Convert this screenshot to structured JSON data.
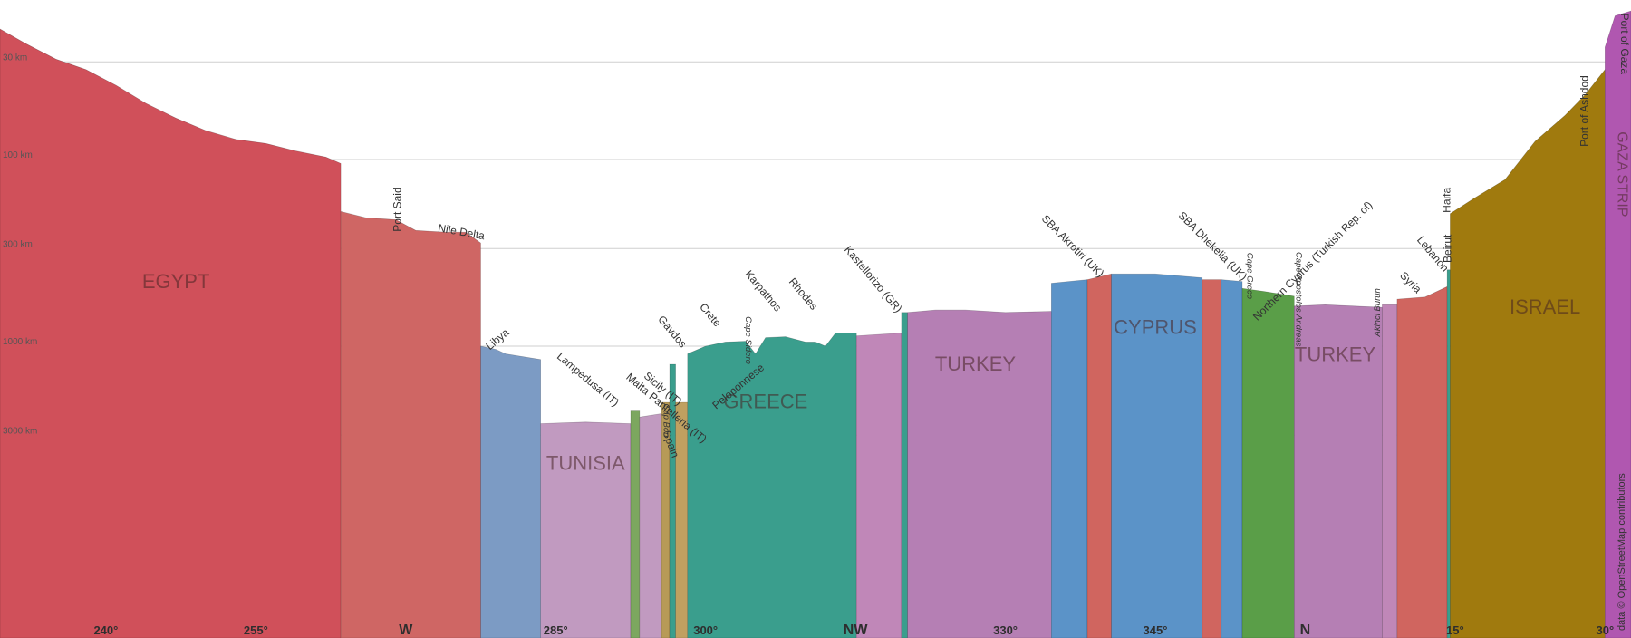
{
  "chart_data": {
    "type": "area",
    "title": "",
    "distance_labels": [
      "30 km",
      "100 km",
      "300 km",
      "1000 km",
      "3000 km"
    ],
    "bearing_ticks": [
      {
        "label": "240°",
        "bearing": 240,
        "cardinal": false
      },
      {
        "label": "255°",
        "bearing": 255,
        "cardinal": false
      },
      {
        "label": "W",
        "bearing": 270,
        "cardinal": true
      },
      {
        "label": "285°",
        "bearing": 285,
        "cardinal": false
      },
      {
        "label": "300°",
        "bearing": 300,
        "cardinal": false
      },
      {
        "label": "NW",
        "bearing": 315,
        "cardinal": true
      },
      {
        "label": "330°",
        "bearing": 330,
        "cardinal": false
      },
      {
        "label": "345°",
        "bearing": 345,
        "cardinal": false
      },
      {
        "label": "N",
        "bearing": 360,
        "cardinal": true
      },
      {
        "label": "15°",
        "bearing": 375,
        "cardinal": false
      },
      {
        "label": "30°",
        "bearing": 390,
        "cardinal": false
      }
    ],
    "regions": [
      {
        "country": "EGYPT",
        "color": "#d0505a",
        "from": 229.4,
        "to": 263.5,
        "profile": [
          [
            229.4,
            20
          ],
          [
            232,
            24
          ],
          [
            235,
            29
          ],
          [
            238,
            33
          ],
          [
            241,
            40
          ],
          [
            244,
            50
          ],
          [
            247,
            60
          ],
          [
            250,
            70
          ],
          [
            253,
            78
          ],
          [
            256,
            82
          ],
          [
            259,
            90
          ],
          [
            262,
            97
          ],
          [
            263.5,
            105
          ]
        ]
      },
      {
        "country": "EGYPT",
        "color": "#cf6664",
        "from": 263.5,
        "to": 277.5,
        "profile": [
          [
            263.5,
            190
          ],
          [
            266,
            205
          ],
          [
            269,
            210
          ],
          [
            271,
            240
          ],
          [
            274,
            245
          ],
          [
            276,
            245
          ],
          [
            277.5,
            280
          ]
        ]
      },
      {
        "country": "",
        "color": "#7c9bc4",
        "from": 277.5,
        "to": 283.5,
        "profile": [
          [
            277.5,
            1000
          ],
          [
            279,
            1040
          ],
          [
            280,
            1100
          ],
          [
            283.5,
            1180
          ]
        ]
      },
      {
        "country": "TUNISIA",
        "color": "#c19ac0",
        "from": 283.5,
        "to": 292.5,
        "profile": [
          [
            283.5,
            2600
          ],
          [
            288,
            2550
          ],
          [
            292.5,
            2600
          ]
        ]
      },
      {
        "country": "",
        "color": "#7ca75f",
        "from": 292.5,
        "to": 293.4,
        "profile": [
          [
            292.5,
            2200
          ],
          [
            293.4,
            2200
          ]
        ]
      },
      {
        "country": "",
        "color": "#c19ac0",
        "from": 293.4,
        "to": 295.6,
        "profile": [
          [
            293.4,
            2400
          ],
          [
            295.6,
            2300
          ]
        ]
      },
      {
        "country": "",
        "color": "#b79a57",
        "from": 295.6,
        "to": 296.4,
        "profile": [
          [
            295.6,
            2000
          ],
          [
            296.4,
            2000
          ]
        ]
      },
      {
        "country": "",
        "color": "#3a9e8d",
        "from": 296.4,
        "to": 297.0,
        "profile": [
          [
            296.4,
            1250
          ],
          [
            297,
            1250
          ]
        ]
      },
      {
        "country": "",
        "color": "#c0a060",
        "from": 297.0,
        "to": 298.2,
        "profile": [
          [
            297,
            2000
          ],
          [
            298.2,
            2000
          ]
        ]
      },
      {
        "country": "GREECE",
        "color": "#3a9e8d",
        "from": 298.2,
        "to": 315.1,
        "profile": [
          [
            298.2,
            1100
          ],
          [
            300,
            1000
          ],
          [
            302,
            950
          ],
          [
            304,
            940
          ],
          [
            305,
            1100
          ],
          [
            306,
            900
          ],
          [
            308,
            890
          ],
          [
            310,
            950
          ],
          [
            311,
            950
          ],
          [
            312,
            1000
          ],
          [
            313,
            850
          ],
          [
            315.1,
            850
          ]
        ]
      },
      {
        "country": "",
        "color": "#c087b8",
        "from": 315.1,
        "to": 319.6,
        "profile": [
          [
            315.1,
            880
          ],
          [
            319.6,
            850
          ]
        ]
      },
      {
        "country": "",
        "color": "#3a9e8d",
        "from": 319.6,
        "to": 320.2,
        "profile": [
          [
            319.6,
            660
          ],
          [
            320.2,
            660
          ]
        ]
      },
      {
        "country": "TURKEY",
        "color": "#b57fb4",
        "from": 320.2,
        "to": 334.6,
        "profile": [
          [
            320.2,
            660
          ],
          [
            323,
            640
          ],
          [
            326,
            640
          ],
          [
            330,
            660
          ],
          [
            334.6,
            650
          ]
        ]
      },
      {
        "country": "",
        "color": "#5b93c8",
        "from": 334.6,
        "to": 338.2,
        "profile": [
          [
            334.6,
            460
          ],
          [
            338.2,
            440
          ]
        ]
      },
      {
        "country": "",
        "color": "#d0655f",
        "from": 338.2,
        "to": 340.6,
        "profile": [
          [
            338.2,
            440
          ],
          [
            340.6,
            410
          ]
        ]
      },
      {
        "country": "CYPRUS",
        "color": "#5b93c8",
        "from": 340.6,
        "to": 349.7,
        "profile": [
          [
            340.6,
            410
          ],
          [
            345,
            410
          ],
          [
            349.7,
            430
          ]
        ]
      },
      {
        "country": "",
        "color": "#d0655f",
        "from": 349.7,
        "to": 351.6,
        "profile": [
          [
            349.7,
            440
          ],
          [
            351.6,
            440
          ]
        ]
      },
      {
        "country": "",
        "color": "#5b93c8",
        "from": 351.6,
        "to": 353.7,
        "profile": [
          [
            351.6,
            440
          ],
          [
            353.7,
            450
          ]
        ]
      },
      {
        "country": "",
        "color": "#5a9e48",
        "from": 353.7,
        "to": 358.9,
        "profile": [
          [
            353.7,
            490
          ],
          [
            356,
            510
          ],
          [
            358.9,
            540
          ]
        ]
      },
      {
        "country": "TURKEY",
        "color": "#b57fb4",
        "from": 358.9,
        "to": 367.7,
        "profile": [
          [
            358.9,
            610
          ],
          [
            362,
            600
          ],
          [
            367.7,
            620
          ]
        ]
      },
      {
        "country": "",
        "color": "#c087b8",
        "from": 367.7,
        "to": 369.2,
        "profile": [
          [
            367.7,
            600
          ],
          [
            369.2,
            600
          ]
        ]
      },
      {
        "country": "",
        "color": "#d0655f",
        "from": 369.2,
        "to": 374.2,
        "profile": [
          [
            369.2,
            560
          ],
          [
            372,
            545
          ],
          [
            374.2,
            480
          ]
        ]
      },
      {
        "country": "",
        "color": "#3a9e8d",
        "from": 374.2,
        "to": 374.5,
        "profile": [
          [
            374.2,
            390
          ],
          [
            374.5,
            390
          ]
        ]
      },
      {
        "country": "ISRAEL",
        "color": "#a07a0e",
        "from": 374.5,
        "to": 390.0,
        "profile": [
          [
            374.5,
            195
          ],
          [
            377,
            160
          ],
          [
            380,
            128
          ],
          [
            383,
            80
          ],
          [
            386,
            58
          ],
          [
            388,
            45
          ],
          [
            390,
            33
          ]
        ]
      },
      {
        "country": "GAZA STRIP",
        "color": "#b057b0",
        "from": 390.0,
        "to": 392.6,
        "profile": [
          [
            390,
            25
          ],
          [
            391,
            17
          ],
          [
            392.6,
            16
          ]
        ]
      }
    ],
    "country_labels": [
      {
        "text": "EGYPT",
        "bearing": 247,
        "distance": 490
      },
      {
        "text": "TUNISIA",
        "bearing": 288,
        "distance": 4600
      },
      {
        "text": "GREECE",
        "bearing": 306,
        "distance": 2150
      },
      {
        "text": "TURKEY",
        "bearing": 327,
        "distance": 1350
      },
      {
        "text": "CYPRUS",
        "bearing": 345,
        "distance": 860
      },
      {
        "text": "TURKEY",
        "bearing": 363,
        "distance": 1200
      },
      {
        "text": "ISRAEL",
        "bearing": 384,
        "distance": 670
      },
      {
        "text": "GAZA STRIP",
        "bearing": 391.3,
        "distance": 120,
        "vertical": true
      }
    ],
    "place_labels": [
      {
        "text": "Port Said",
        "bearing": 269.5,
        "distance": 185,
        "angle": -90
      },
      {
        "text": "Nile Delta",
        "bearing": 275.5,
        "distance": 255,
        "angle": 10
      },
      {
        "text": "Libya",
        "bearing": 279.4,
        "distance": 950,
        "angle": -40
      },
      {
        "text": "Lampedusa (IT)",
        "bearing": 288,
        "distance": 1560,
        "angle": 40
      },
      {
        "text": "Malta",
        "bearing": 293,
        "distance": 1650,
        "angle": 40
      },
      {
        "text": "Sicily (IT)",
        "bearing": 295.5,
        "distance": 1750,
        "angle": 40
      },
      {
        "text": "Pantelleria (IT)",
        "bearing": 297,
        "distance": 2500,
        "angle": 40
      },
      {
        "text": "Spain",
        "bearing": 296.2,
        "distance": 3400,
        "angle": 70
      },
      {
        "text": "Gavdos",
        "bearing": 296.4,
        "distance": 860,
        "angle": 50
      },
      {
        "text": "Crete",
        "bearing": 300.2,
        "distance": 700,
        "angle": 50
      },
      {
        "text": "Karpathos",
        "bearing": 305.5,
        "distance": 520,
        "angle": 50
      },
      {
        "text": "Rhodes",
        "bearing": 309.5,
        "distance": 540,
        "angle": 50
      },
      {
        "text": "Kastellorizo (GR)",
        "bearing": 316.5,
        "distance": 450,
        "angle": 50
      },
      {
        "text": "Peloponnese",
        "bearing": 303.5,
        "distance": 1700,
        "angle": -40
      },
      {
        "text": "SBA Akrotiri (UK)",
        "bearing": 336.5,
        "distance": 300,
        "angle": 45
      },
      {
        "text": "SBA Dhekelia (UK)",
        "bearing": 350.5,
        "distance": 300,
        "angle": 45
      },
      {
        "text": "Northern Cyprus (Turkish Rep. of)",
        "bearing": 361,
        "distance": 360,
        "angle": -45
      },
      {
        "text": "Lebanon",
        "bearing": 372.5,
        "distance": 330,
        "angle": 50
      },
      {
        "text": "Syria",
        "bearing": 370.3,
        "distance": 470,
        "angle": 45
      },
      {
        "text": "Haifa",
        "bearing": 374.5,
        "distance": 165,
        "angle": -90
      },
      {
        "text": "Beirut",
        "bearing": 374.6,
        "distance": 300,
        "angle": -90
      },
      {
        "text": "Port of Ashdod",
        "bearing": 388.3,
        "distance": 55,
        "angle": -90
      },
      {
        "text": "Port of Gaza",
        "bearing": 391.6,
        "distance": 24,
        "angle": 90
      }
    ],
    "small_place_labels": [
      {
        "text": "Cape Sidero",
        "bearing": 304,
        "distance": 930,
        "angle": 90
      },
      {
        "text": "Cap Bon",
        "bearing": 295.8,
        "distance": 2500,
        "angle": 90
      },
      {
        "text": "Cape Greco",
        "bearing": 354.2,
        "distance": 420,
        "angle": 90
      },
      {
        "text": "Cape Apostolos Andreas",
        "bearing": 359.1,
        "distance": 560,
        "angle": 90
      },
      {
        "text": "Akinci Burun",
        "bearing": 367.5,
        "distance": 660,
        "angle": -90
      }
    ],
    "attribution": "data © OpenStreetMap contributors"
  }
}
